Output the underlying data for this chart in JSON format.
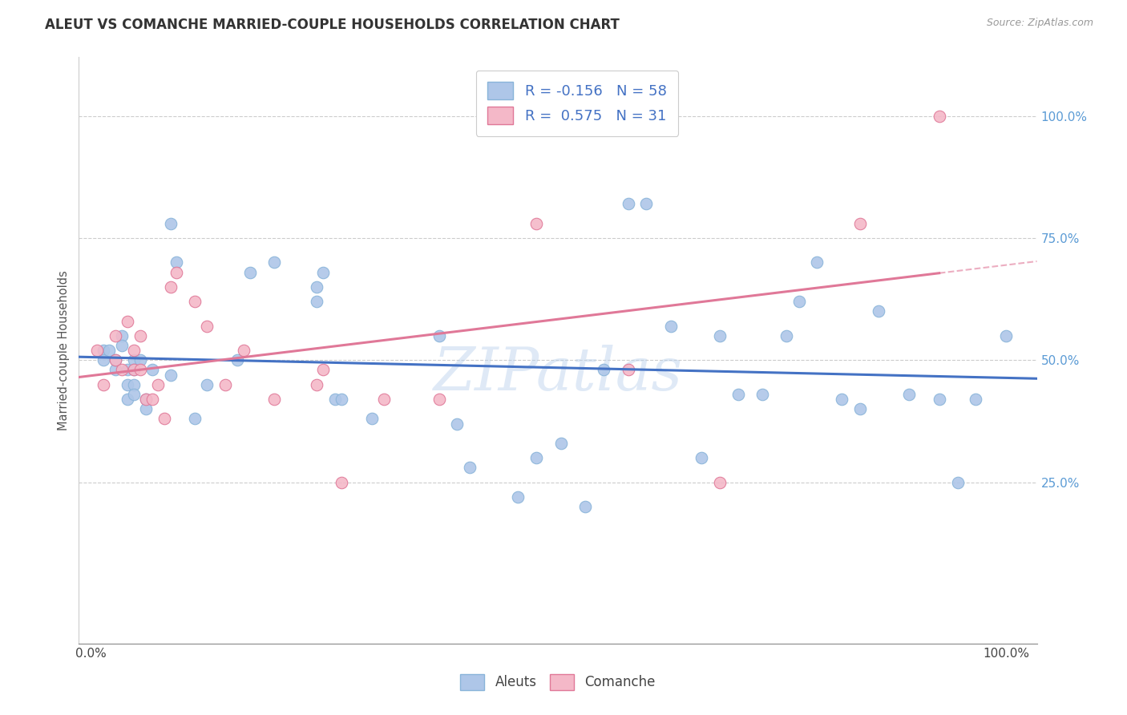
{
  "title": "ALEUT VS COMANCHE MARRIED-COUPLE HOUSEHOLDS CORRELATION CHART",
  "source": "Source: ZipAtlas.com",
  "ylabel": "Married-couple Households",
  "background_color": "#ffffff",
  "watermark": "ZIPatlas",
  "aleuts_color": "#aec6e8",
  "aleuts_edge_color": "#89b4d9",
  "comanche_color": "#f4b8c8",
  "comanche_edge_color": "#e07898",
  "line_aleuts_color": "#4472c4",
  "line_comanche_color": "#e07898",
  "legend_r_aleuts": "R = -0.156",
  "legend_n_aleuts": "N = 58",
  "legend_r_comanche": "R =  0.575",
  "legend_n_comanche": "N = 31",
  "aleuts_x": [
    0.02,
    0.02,
    0.03,
    0.04,
    0.04,
    0.05,
    0.05,
    0.06,
    0.06,
    0.06,
    0.07,
    0.07,
    0.07,
    0.07,
    0.08,
    0.09,
    0.09,
    0.1,
    0.13,
    0.13,
    0.14,
    0.17,
    0.19,
    0.24,
    0.26,
    0.3,
    0.37,
    0.37,
    0.38,
    0.4,
    0.41,
    0.46,
    0.57,
    0.6,
    0.62,
    0.7,
    0.73,
    0.77,
    0.81,
    0.84,
    0.88,
    0.91,
    0.95,
    1.0,
    1.03,
    1.06,
    1.1,
    1.14,
    1.16,
    1.19,
    1.23,
    1.26,
    1.29,
    1.34,
    1.39,
    1.42,
    1.45,
    1.5
  ],
  "aleuts_y": [
    0.52,
    0.5,
    0.52,
    0.48,
    0.5,
    0.55,
    0.53,
    0.48,
    0.45,
    0.42,
    0.5,
    0.48,
    0.45,
    0.43,
    0.5,
    0.42,
    0.4,
    0.48,
    0.78,
    0.47,
    0.7,
    0.38,
    0.45,
    0.5,
    0.68,
    0.7,
    0.65,
    0.62,
    0.68,
    0.42,
    0.42,
    0.38,
    0.55,
    0.37,
    0.28,
    0.22,
    0.3,
    0.33,
    0.2,
    0.48,
    0.82,
    0.82,
    0.57,
    0.3,
    0.55,
    0.43,
    0.43,
    0.55,
    0.62,
    0.7,
    0.42,
    0.4,
    0.6,
    0.43,
    0.42,
    0.25,
    0.42,
    0.55
  ],
  "comanche_x": [
    0.01,
    0.02,
    0.04,
    0.04,
    0.05,
    0.06,
    0.07,
    0.07,
    0.08,
    0.08,
    0.09,
    0.1,
    0.11,
    0.12,
    0.13,
    0.14,
    0.17,
    0.19,
    0.22,
    0.25,
    0.3,
    0.37,
    0.38,
    0.41,
    0.48,
    0.57,
    0.73,
    0.88,
    1.03,
    1.26,
    1.39
  ],
  "comanche_y": [
    0.52,
    0.45,
    0.55,
    0.5,
    0.48,
    0.58,
    0.52,
    0.48,
    0.55,
    0.48,
    0.42,
    0.42,
    0.45,
    0.38,
    0.65,
    0.68,
    0.62,
    0.57,
    0.45,
    0.52,
    0.42,
    0.45,
    0.48,
    0.25,
    0.42,
    0.42,
    0.78,
    0.48,
    0.25,
    0.78,
    1.0
  ],
  "dot_size": 110,
  "xlim": [
    -0.02,
    1.55
  ],
  "ylim": [
    -0.08,
    1.12
  ],
  "ytick_positions": [
    0.25,
    0.5,
    0.75,
    1.0
  ],
  "ytick_labels": [
    "25.0%",
    "50.0%",
    "75.0%",
    "100.0%"
  ],
  "grid_color": "#cccccc",
  "title_fontsize": 12,
  "tick_label_color_y": "#5b9bd5",
  "tick_label_color_x": "#444444"
}
